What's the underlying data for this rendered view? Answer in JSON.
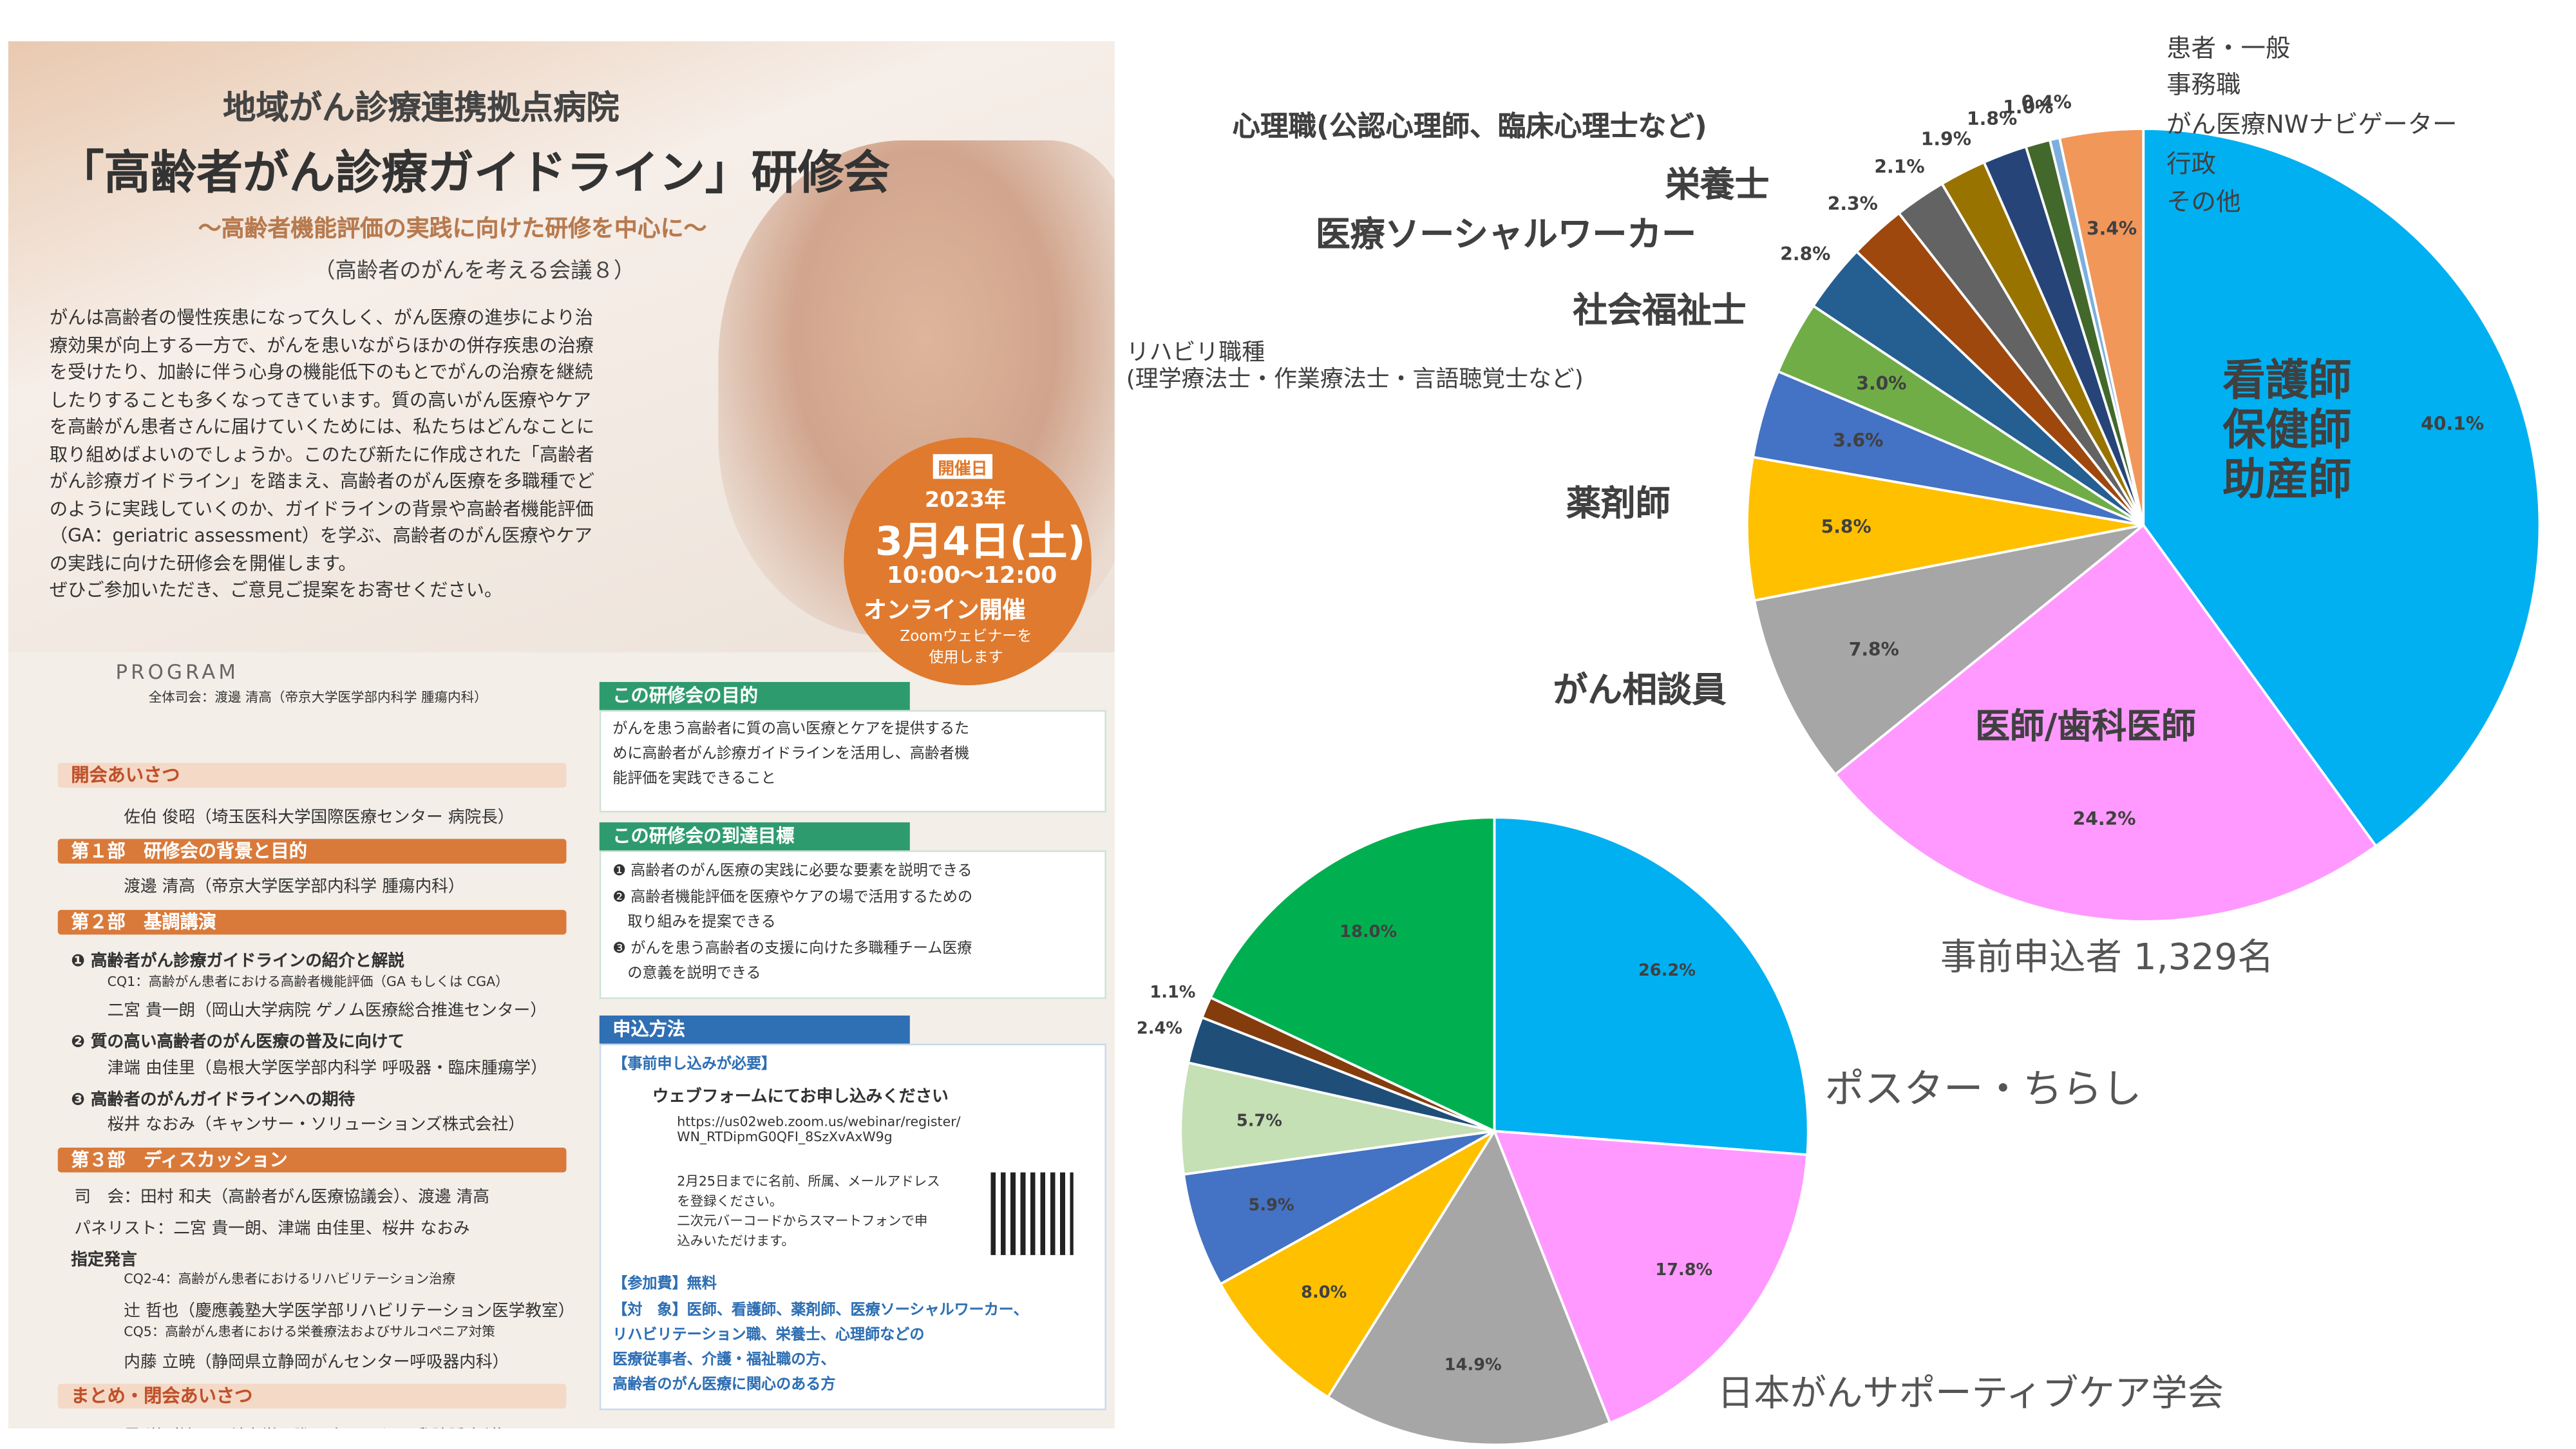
{
  "flyer": {
    "org": "地域がん診療連携拠点病院",
    "title": "「高齢者がん診療ガイドライン」研修会",
    "subtitle": "～高齢者機能評価の実践に向けた研修を中心に～",
    "series_note": "（高齢者のがんを考える会議８）",
    "intro": "がんは高齢者の慢性疾患になって久しく、がん医療の進歩により治\n療効果が向上する一方で、がんを患いながらほかの併存疾患の治療\nを受けたり、加齢に伴う心身の機能低下のもとでがんの治療を継続\nしたりすることも多くなってきています。質の高いがん医療やケア\nを高齢がん患者さんに届けていくためには、私たちはどんなことに\n取り組めばよいのでしょうか。このたび新たに作成された「高齢者\nがん診療ガイドライン」を踏まえ、高齢者のがん医療を多職種でど\nのように実践していくのか、ガイドラインの背景や高齢者機能評価\n（GA：geriatric assessment）を学ぶ、高齢者のがん医療やケア\nの実践に向けた研修会を開催します。\nぜひご参加いただき、ご意見ご提案をお寄せください。",
    "date": {
      "label": "開催日",
      "year": "2023年",
      "day": "3月4日(土)",
      "time": "10:00～12:00",
      "mode": "オンライン開催",
      "mode_note": "Zoomウェビナーを\n使用します"
    },
    "program": {
      "heading": "PROGRAM",
      "chair": "全体司会：渡邊 清高（帝京大学医学部内科学 腫瘍内科）",
      "items": [
        "開会あいさつ",
        "佐伯 俊昭（埼玉医科大学国際医療センター 病院長）",
        "第１部　研修会の背景と目的",
        "渡邊 清高（帝京大学医学部内科学 腫瘍内科）",
        "第２部　基調講演",
        "❶ 高齢者がん診療ガイドラインの紹介と解説",
        "CQ1：高齢がん患者における高齢者機能評価（GA もしくは CGA）",
        "二宮 貴一朗（岡山大学病院 ゲノム医療総合推進センター）",
        "❷ 質の高い高齢者のがん医療の普及に向けて",
        "津端 由佳里（島根大学医学部内科学 呼吸器・臨床腫瘍学）",
        "❸ 高齢者のがんガイドラインへの期待",
        "桜井 なおみ（キャンサー・ソリューションズ株式会社）",
        "第３部　ディスカッション",
        "司　会：田村 和夫（高齢者がん医療協議会）、渡邊 清高",
        "パネリスト：二宮 貴一朗、津端 由佳里、桜井 なおみ",
        "指定発言",
        "CQ2-4：高齢がん患者におけるリハビリテーション治療",
        "辻 哲也（慶應義塾大学医学部リハビリテーション医学教室）",
        "CQ5：高齢がん患者における栄養療法およびサルコペニア対策",
        "内藤 立暁（静岡県立静岡がんセンター呼吸器内科）",
        "まとめ・閉会あいさつ",
        "石黒 洋（埼玉医科大学国際医療センター 乳腺腫瘍科）"
      ]
    },
    "purpose": {
      "heading": "この研修会の目的",
      "text": "がんを患う高齢者に質の高い医療とケアを提供するた\nめに高齢者がん診療ガイドラインを活用し、高齢者機\n能評価を実践できること"
    },
    "goals": {
      "heading": "この研修会の到達目標",
      "items": [
        "❶ 高齢者のがん医療の実践に必要な要素を説明できる",
        "❷ 高齢者機能評価を医療やケアの場で活用するための\n　取り組みを提案できる",
        "❸ がんを患う高齢者の支援に向けた多職種チーム医療\n　の意義を説明できる"
      ]
    },
    "apply": {
      "heading": "申込方法",
      "lines": [
        "【事前申し込みが必要】",
        "ウェブフォームにてお申し込みください",
        "https://us02web.zoom.us/webinar/register/\nWN_RTDipmG0QFI_8SzXvAxW9g",
        "2月25日までに名前、所属、メールアドレス\nを登録ください。\n二次元バーコードからスマートフォンで申\n込みいただけます。",
        "【参加費】無料",
        "【対　象】医師、看護師、薬剤師、医療ソーシャルワーカー、\nリハビリテーション職、栄養士、心理師などの\n医療従事者、介護・福祉職の方、\n高齢者のがん医療に関心のある方"
      ]
    }
  },
  "chart_data": [
    {
      "type": "pie",
      "annotation": "事前申込者 1,329名",
      "categories": [
        "看護師\n保健師\n助産師",
        "医師/歯科医師",
        "がん相談員",
        "薬剤師",
        "リハビリ職種\n(理学療法士・作業療法士・言語聴覚士など)",
        "社会福祉士",
        "医療ソーシャルワーカー",
        "栄養士",
        "心理職(公認心理師、臨床心理士など)",
        "患者・一般",
        "事務職",
        "がん医療NWナビゲーター",
        "行政",
        "その他"
      ],
      "values": [
        40.1,
        24.2,
        7.8,
        5.8,
        3.6,
        3.0,
        2.8,
        2.3,
        2.1,
        1.9,
        1.8,
        1.0,
        0.4,
        3.4
      ],
      "value_labels": [
        "40.1%",
        "24.2%",
        "7.8%",
        "5.8%",
        "3.6%",
        "3.0%",
        "2.8%",
        "2.3%",
        "2.1%",
        "1.9%",
        "1.8%",
        "1.0%",
        "0.4%",
        "3.4%"
      ],
      "colors": [
        "#00b0f0",
        "#ff99ff",
        "#a6a6a6",
        "#ffc000",
        "#4472c4",
        "#70ad47",
        "#255e91",
        "#9e480e",
        "#636363",
        "#997300",
        "#264478",
        "#43682b",
        "#7cafdd",
        "#f1975a"
      ]
    },
    {
      "type": "pie",
      "annotations": [
        "ポスター・ちらし",
        "日本がんサポーティブケア学会"
      ],
      "categories": [
        null,
        null,
        null,
        null,
        null,
        null,
        null,
        null,
        null
      ],
      "values": [
        26.2,
        17.8,
        14.9,
        8.0,
        5.9,
        5.7,
        2.4,
        1.1,
        18.0
      ],
      "value_labels": [
        "26.2%",
        "17.8%",
        "14.9%",
        "8.0%",
        "5.9%",
        "5.7%",
        "2.4%",
        "1.1%",
        "18.0%"
      ],
      "colors": [
        "#00b0f0",
        "#ff99ff",
        "#a6a6a6",
        "#ffc000",
        "#4472c4",
        "#c5e0b4",
        "#1f4e79",
        "#843c0c",
        "#00b050"
      ]
    }
  ]
}
